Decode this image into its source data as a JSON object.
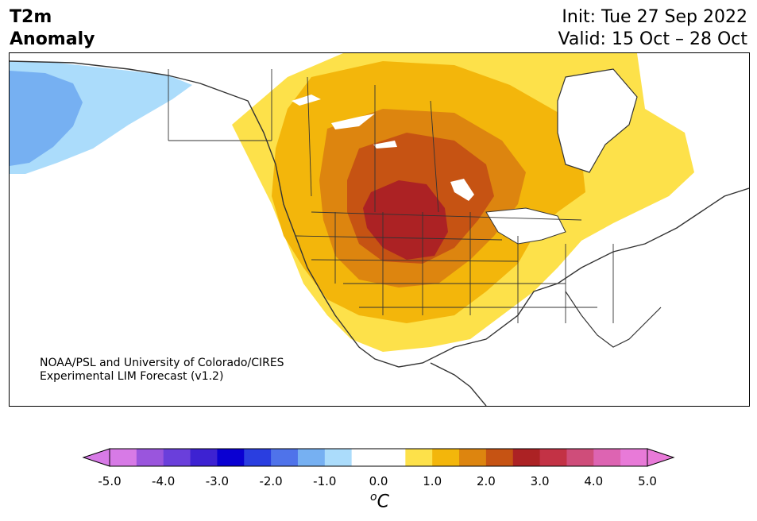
{
  "header": {
    "title_line1": "T2m",
    "title_line2": "Anomaly",
    "init_label": "Init: Tue 27 Sep 2022",
    "valid_label": "Valid: 15 Oct – 28 Oct"
  },
  "map": {
    "region": "North America",
    "variable": "2-meter temperature anomaly",
    "credit_line1": "NOAA/PSL and University of Colorado/CIRES",
    "credit_line2": "Experimental LIM Forecast (v1.2)",
    "anomaly_regions": [
      {
        "area": "Alaska interior",
        "range": "-1.5 to -1.0"
      },
      {
        "area": "Western Alaska / Bering coast",
        "range": "-1.0 to -0.5"
      },
      {
        "area": "Northern Great Plains / South-central Canada",
        "range": "2.5 to 3.0"
      },
      {
        "area": "Central Plains / Northern Rockies",
        "range": "1.5 to 2.5"
      },
      {
        "area": "Western US / Central Canada / Hudson Bay",
        "range": "0.5 to 1.5"
      },
      {
        "area": "Eastern US / Southeast",
        "range": "-0.5 to 0.5"
      }
    ]
  },
  "colorbar": {
    "unit_base": "C",
    "unit_sup": "o",
    "ticks": [
      "-5.0",
      "-4.0",
      "-3.0",
      "-2.0",
      "-1.0",
      "0.0",
      "1.0",
      "2.0",
      "3.0",
      "4.0",
      "5.0"
    ],
    "colors": [
      "#d77ae6",
      "#9a55dd",
      "#6a3fdb",
      "#3d22d2",
      "#0a00d2",
      "#2a3ee0",
      "#4f73ea",
      "#76b0f2",
      "#abdcfb",
      "#ffffff",
      "#ffffff",
      "#fde14a",
      "#f3b60b",
      "#dd850f",
      "#c65313",
      "#ac2224",
      "#c33245",
      "#cf4d7a",
      "#dd64b2",
      "#e87ad8"
    ],
    "under_color": "#d77ae6",
    "over_color": "#e87ad8"
  }
}
